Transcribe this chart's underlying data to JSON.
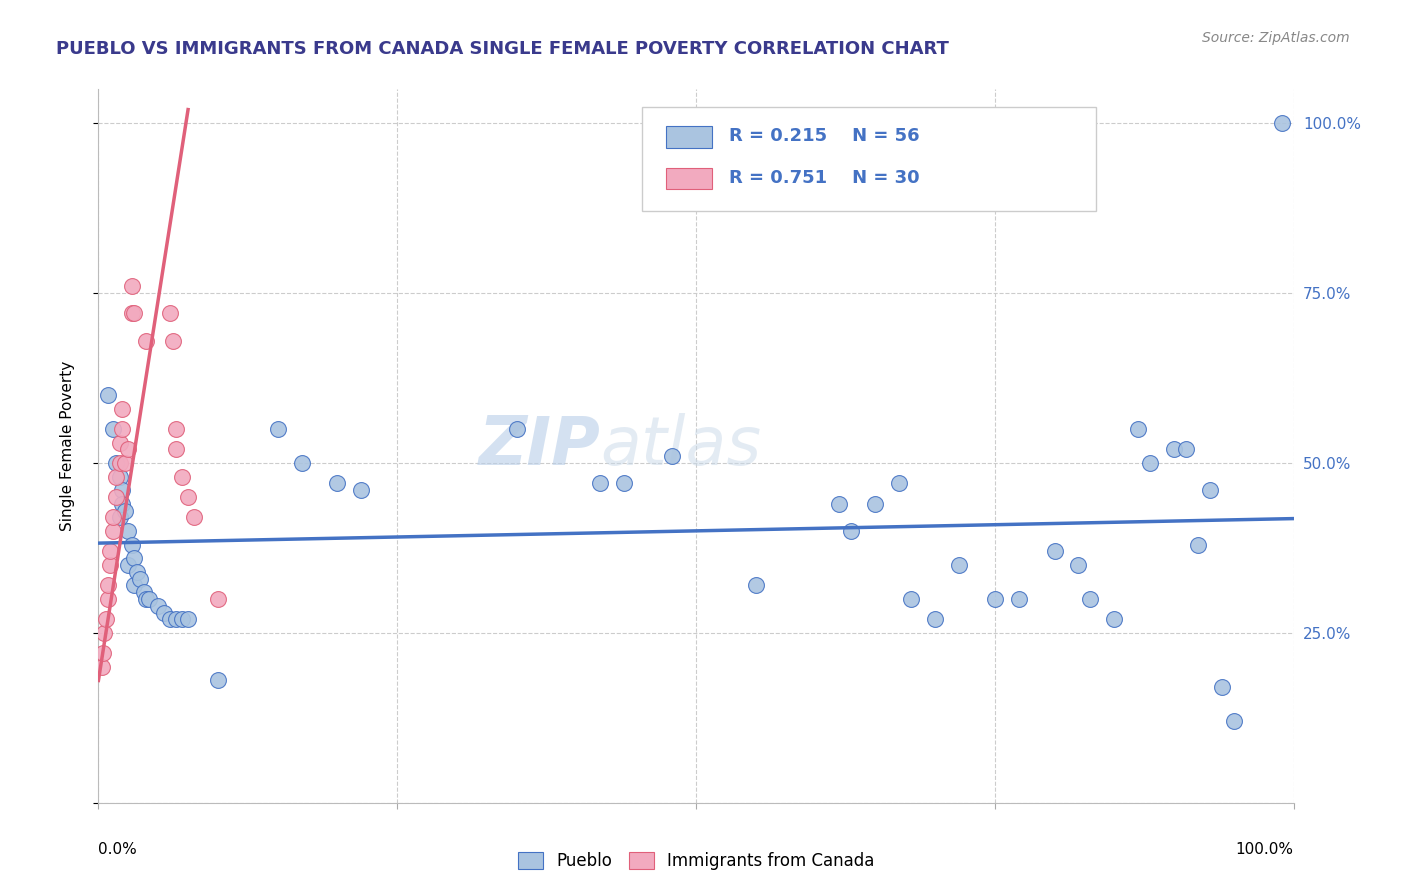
{
  "title": "PUEBLO VS IMMIGRANTS FROM CANADA SINGLE FEMALE POVERTY CORRELATION CHART",
  "source": "Source: ZipAtlas.com",
  "ylabel": "Single Female Poverty",
  "legend1_label": "Pueblo",
  "legend2_label": "Immigrants from Canada",
  "blue_R": 0.215,
  "blue_N": 56,
  "pink_R": 0.751,
  "pink_N": 30,
  "blue_color": "#aac4e0",
  "pink_color": "#f2aabf",
  "blue_line_color": "#4472c4",
  "pink_line_color": "#e0607a",
  "watermark_zip": "ZIP",
  "watermark_atlas": "atlas",
  "xlim": [
    0,
    1.0
  ],
  "ylim": [
    0,
    1.05
  ],
  "blue_dots": [
    [
      0.008,
      0.6
    ],
    [
      0.012,
      0.55
    ],
    [
      0.015,
      0.5
    ],
    [
      0.018,
      0.48
    ],
    [
      0.018,
      0.42
    ],
    [
      0.02,
      0.46
    ],
    [
      0.02,
      0.44
    ],
    [
      0.022,
      0.43
    ],
    [
      0.025,
      0.4
    ],
    [
      0.025,
      0.35
    ],
    [
      0.028,
      0.38
    ],
    [
      0.03,
      0.36
    ],
    [
      0.03,
      0.32
    ],
    [
      0.032,
      0.34
    ],
    [
      0.035,
      0.33
    ],
    [
      0.038,
      0.31
    ],
    [
      0.04,
      0.3
    ],
    [
      0.042,
      0.3
    ],
    [
      0.05,
      0.29
    ],
    [
      0.055,
      0.28
    ],
    [
      0.06,
      0.27
    ],
    [
      0.065,
      0.27
    ],
    [
      0.07,
      0.27
    ],
    [
      0.075,
      0.27
    ],
    [
      0.1,
      0.18
    ],
    [
      0.15,
      0.55
    ],
    [
      0.17,
      0.5
    ],
    [
      0.2,
      0.47
    ],
    [
      0.22,
      0.46
    ],
    [
      0.35,
      0.55
    ],
    [
      0.42,
      0.47
    ],
    [
      0.44,
      0.47
    ],
    [
      0.48,
      0.51
    ],
    [
      0.55,
      0.32
    ],
    [
      0.62,
      0.44
    ],
    [
      0.63,
      0.4
    ],
    [
      0.65,
      0.44
    ],
    [
      0.67,
      0.47
    ],
    [
      0.68,
      0.3
    ],
    [
      0.7,
      0.27
    ],
    [
      0.72,
      0.35
    ],
    [
      0.75,
      0.3
    ],
    [
      0.77,
      0.3
    ],
    [
      0.8,
      0.37
    ],
    [
      0.82,
      0.35
    ],
    [
      0.83,
      0.3
    ],
    [
      0.85,
      0.27
    ],
    [
      0.87,
      0.55
    ],
    [
      0.88,
      0.5
    ],
    [
      0.9,
      0.52
    ],
    [
      0.91,
      0.52
    ],
    [
      0.92,
      0.38
    ],
    [
      0.93,
      0.46
    ],
    [
      0.94,
      0.17
    ],
    [
      0.95,
      0.12
    ],
    [
      0.99,
      1.0
    ]
  ],
  "pink_dots": [
    [
      0.003,
      0.2
    ],
    [
      0.004,
      0.22
    ],
    [
      0.005,
      0.25
    ],
    [
      0.006,
      0.27
    ],
    [
      0.008,
      0.3
    ],
    [
      0.008,
      0.32
    ],
    [
      0.01,
      0.35
    ],
    [
      0.01,
      0.37
    ],
    [
      0.012,
      0.4
    ],
    [
      0.012,
      0.42
    ],
    [
      0.015,
      0.45
    ],
    [
      0.015,
      0.48
    ],
    [
      0.018,
      0.5
    ],
    [
      0.018,
      0.53
    ],
    [
      0.02,
      0.55
    ],
    [
      0.02,
      0.58
    ],
    [
      0.022,
      0.5
    ],
    [
      0.025,
      0.52
    ],
    [
      0.028,
      0.72
    ],
    [
      0.028,
      0.76
    ],
    [
      0.03,
      0.72
    ],
    [
      0.04,
      0.68
    ],
    [
      0.06,
      0.72
    ],
    [
      0.062,
      0.68
    ],
    [
      0.065,
      0.52
    ],
    [
      0.065,
      0.55
    ],
    [
      0.07,
      0.48
    ],
    [
      0.075,
      0.45
    ],
    [
      0.08,
      0.42
    ],
    [
      0.1,
      0.3
    ]
  ],
  "pink_line_x": [
    0.0,
    0.075
  ],
  "pink_line_y_start": 0.18,
  "pink_line_y_end": 1.02
}
